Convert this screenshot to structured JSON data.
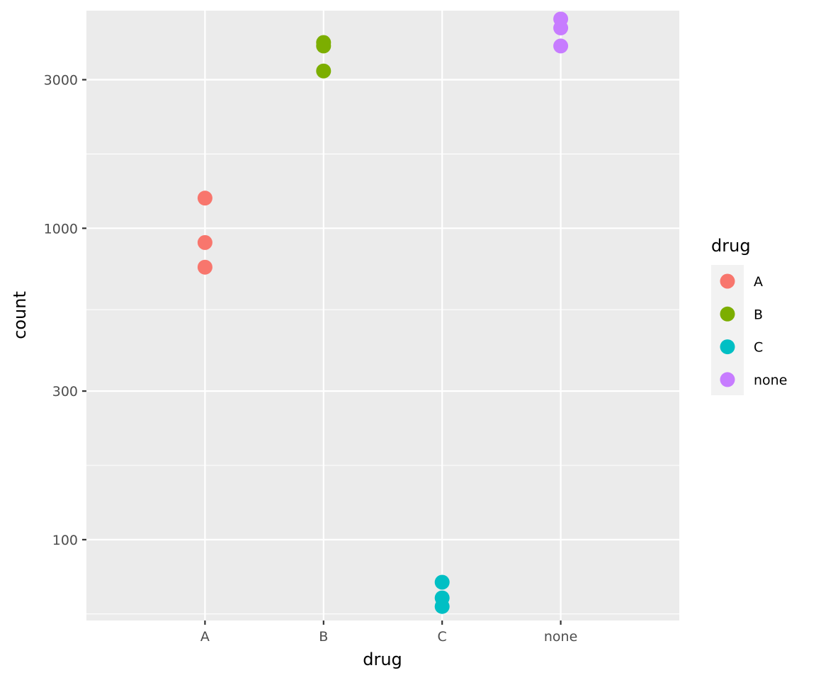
{
  "chart_data": {
    "type": "scatter",
    "xlabel": "drug",
    "ylabel": "count",
    "y_scale": "log10",
    "ylim": [
      55,
      5000
    ],
    "categories": [
      "A",
      "B",
      "C",
      "none"
    ],
    "y_ticks": [
      100,
      300,
      1000,
      3000
    ],
    "y_tick_labels": [
      "100",
      "300",
      "1000",
      "3000"
    ],
    "grid": true,
    "legend": {
      "title": "drug",
      "position": "right",
      "entries": [
        "A",
        "B",
        "C",
        "none"
      ]
    },
    "colors": {
      "A": "#F8766D",
      "B": "#7CAE00",
      "C": "#00BFC4",
      "none": "#C77CFF"
    },
    "panel_background": "#EBEBEB",
    "grid_color": "#FFFFFF",
    "series": [
      {
        "name": "A",
        "category": "A",
        "values": [
          1250,
          900,
          750
        ]
      },
      {
        "name": "B",
        "category": "B",
        "values": [
          3950,
          3850,
          3200
        ]
      },
      {
        "name": "C",
        "category": "C",
        "values": [
          73,
          65,
          61
        ]
      },
      {
        "name": "none",
        "category": "none",
        "values": [
          4700,
          4400,
          3850
        ]
      }
    ]
  }
}
